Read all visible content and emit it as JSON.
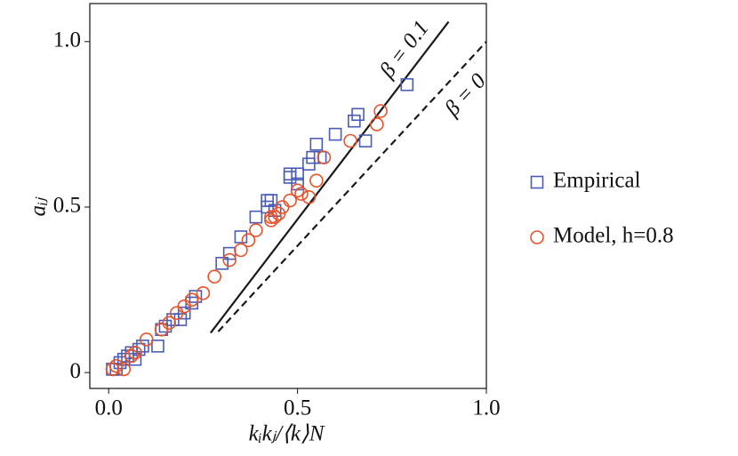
{
  "chart_data": {
    "type": "scatter",
    "x_label": "kᵢkⱼ/⟨k⟩N",
    "y_label": "aᵢⱼ",
    "xlim": [
      -0.05,
      1.0
    ],
    "ylim": [
      -0.048,
      1.115
    ],
    "xticks": [
      {
        "value": 0,
        "label": "0.0"
      },
      {
        "value": 0.5,
        "label": "0.5"
      },
      {
        "value": 1.0,
        "label": "1.0"
      }
    ],
    "yticks": [
      0,
      {
        "value": 0.5,
        "label": "0.5"
      },
      {
        "value": 1.0,
        "label": "1.0"
      }
    ],
    "series": [
      {
        "name": "Empirical",
        "marker": "square",
        "color": "#4a5cb5",
        "x": [
          0.01,
          0.02,
          0.03,
          0.04,
          0.05,
          0.07,
          0.08,
          0.09,
          0.13,
          0.14,
          0.15,
          0.19,
          0.2,
          0.22,
          0.23,
          0.3,
          0.32,
          0.35,
          0.39,
          0.42,
          0.42,
          0.43,
          0.44,
          0.48,
          0.5,
          0.5,
          0.53,
          0.54,
          0.55,
          0.56,
          0.6,
          0.65,
          0.66,
          0.68,
          0.79,
          0.06,
          0.17,
          0.48
        ],
        "values": [
          0.01,
          0.01,
          0.03,
          0.04,
          0.05,
          0.04,
          0.07,
          0.08,
          0.08,
          0.13,
          0.14,
          0.16,
          0.18,
          0.21,
          0.23,
          0.33,
          0.36,
          0.41,
          0.47,
          0.5,
          0.52,
          0.52,
          0.49,
          0.59,
          0.6,
          0.57,
          0.63,
          0.65,
          0.69,
          0.65,
          0.72,
          0.76,
          0.78,
          0.7,
          0.87,
          0.06,
          0.16,
          0.6
        ]
      },
      {
        "name": "Model, h=0.8",
        "marker": "circle",
        "color": "#e5532a",
        "x": [
          0.01,
          0.02,
          0.04,
          0.06,
          0.07,
          0.1,
          0.14,
          0.16,
          0.18,
          0.2,
          0.22,
          0.25,
          0.28,
          0.32,
          0.35,
          0.37,
          0.39,
          0.43,
          0.44,
          0.45,
          0.46,
          0.48,
          0.5,
          0.51,
          0.53,
          0.55,
          0.57,
          0.64,
          0.71,
          0.72,
          0.43
        ],
        "values": [
          0.01,
          0.02,
          0.01,
          0.05,
          0.06,
          0.1,
          0.13,
          0.15,
          0.18,
          0.2,
          0.22,
          0.24,
          0.29,
          0.34,
          0.37,
          0.4,
          0.43,
          0.46,
          0.47,
          0.48,
          0.5,
          0.52,
          0.55,
          0.54,
          0.53,
          0.58,
          0.65,
          0.7,
          0.75,
          0.79,
          0.47
        ]
      }
    ],
    "lines": [
      {
        "label": "β = 0.1",
        "style": "solid",
        "color": "#1a1a1a",
        "x": [
          0.27,
          0.9
        ],
        "values": [
          0.12,
          1.06
        ]
      },
      {
        "label": "β = 0",
        "style": "dashed",
        "color": "#1a1a1a",
        "x": [
          0.29,
          1.0
        ],
        "values": [
          0.124,
          1.0
        ]
      }
    ]
  }
}
